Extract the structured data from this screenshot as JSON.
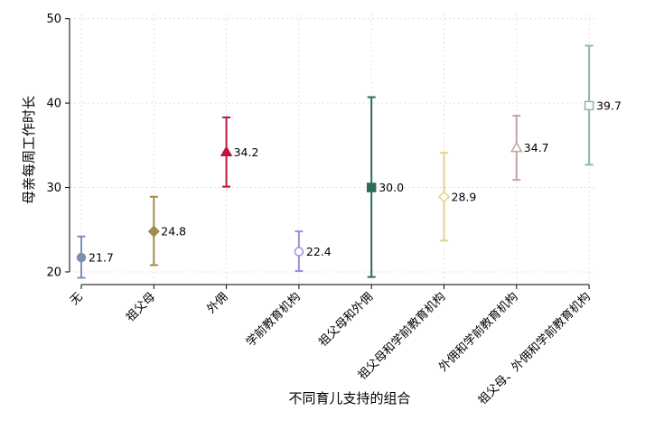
{
  "chart_data": {
    "type": "scatter",
    "xlabel": "不同育儿支持的组合",
    "ylabel": "母亲每周工作时长",
    "ylim": [
      18.5,
      50.5
    ],
    "yticks": [
      20,
      30,
      40,
      50
    ],
    "grid": true,
    "categories": [
      "无",
      "祖父母",
      "外佣",
      "学前教育机构",
      "祖父母和外佣",
      "祖父母和学前教育机构",
      "外佣和学前教育机构",
      "祖父母、外佣和学前教育机构"
    ],
    "points": [
      {
        "category": "无",
        "value": 21.7,
        "label": "21.7",
        "lower": 19.3,
        "upper": 24.2,
        "color": "#7a91b5",
        "marker": "circle-filled"
      },
      {
        "category": "祖父母",
        "value": 24.8,
        "label": "24.8",
        "lower": 20.8,
        "upper": 28.9,
        "color": "#a38b49",
        "marker": "diamond-filled"
      },
      {
        "category": "外佣",
        "value": 34.2,
        "label": "34.2",
        "lower": 30.1,
        "upper": 38.3,
        "color": "#c0143c",
        "marker": "triangle-filled"
      },
      {
        "category": "学前教育机构",
        "value": 22.4,
        "label": "22.4",
        "lower": 20.1,
        "upper": 24.8,
        "color": "#9d8ed9",
        "marker": "circle-open"
      },
      {
        "category": "祖父母和外佣",
        "value": 30.0,
        "label": "30.0",
        "lower": 19.4,
        "upper": 40.7,
        "color": "#2e6b5a",
        "marker": "square-filled"
      },
      {
        "category": "祖父母和学前教育机构",
        "value": 28.9,
        "label": "28.9",
        "lower": 23.7,
        "upper": 34.1,
        "color": "#e0d489",
        "marker": "diamond-open"
      },
      {
        "category": "外佣和学前教育机构",
        "value": 34.7,
        "label": "34.7",
        "lower": 30.9,
        "upper": 38.5,
        "color": "#c4a4a0",
        "marker": "triangle-open"
      },
      {
        "category": "祖父母、外佣和学前教育机构",
        "value": 39.7,
        "label": "39.7",
        "lower": 32.7,
        "upper": 46.8,
        "color": "#8fb8a6",
        "marker": "square-open"
      }
    ]
  }
}
